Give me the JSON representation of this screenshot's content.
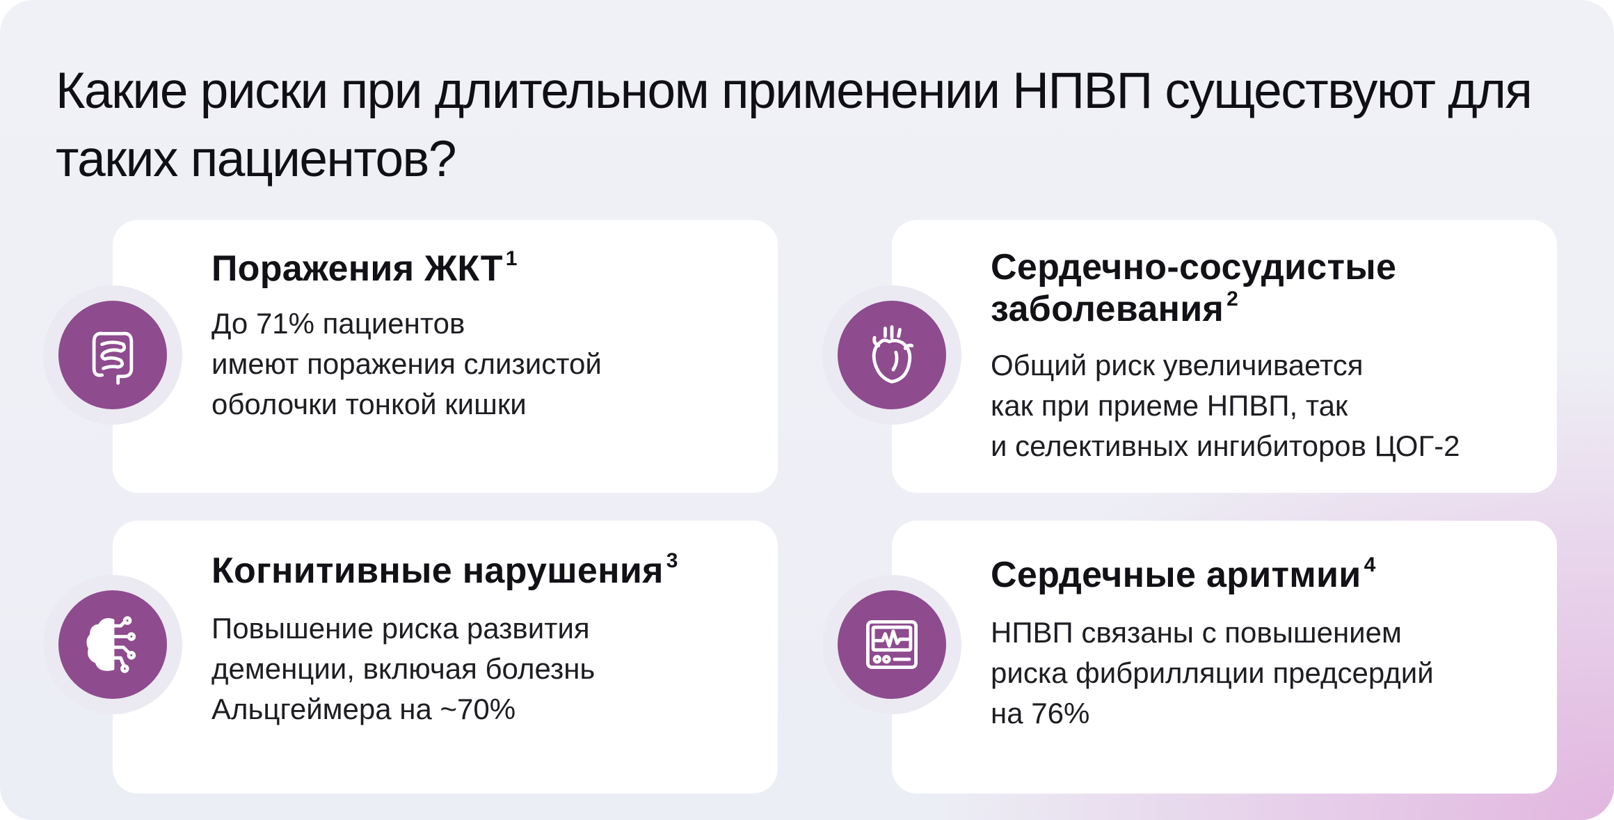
{
  "heading": "Какие риски при длительном применении НПВП существуют для таких пациентов?",
  "colors": {
    "accent": "#8e4b8e",
    "card": "#ffffff",
    "text": "#111116",
    "gradient_pink": "#e2b6e0"
  },
  "cards": [
    {
      "icon": "intestine-icon",
      "title": "Поражения ЖКТ",
      "ref": "1",
      "text": "До 71% пациентов\nимеют поражения слизистой\nоболочки тонкой кишки"
    },
    {
      "icon": "heart-icon",
      "title": "Сердечно-сосудистые\nзаболевания",
      "ref": "2",
      "text": "Общий риск увеличивается\nкак при приеме НПВП, так\nи селективных ингибиторов ЦОГ-2"
    },
    {
      "icon": "brain-circuit-icon",
      "title": "Когнитивные нарушения",
      "ref": "3",
      "text": "Повышение риска развития\nдеменции, включая болезнь\nАльцгеймера на ~70%"
    },
    {
      "icon": "ecg-monitor-icon",
      "title": "Сердечные аритмии",
      "ref": "4",
      "text": "НПВП связаны с повышением\nриска фибрилляции предсердий\nна 76%"
    }
  ]
}
